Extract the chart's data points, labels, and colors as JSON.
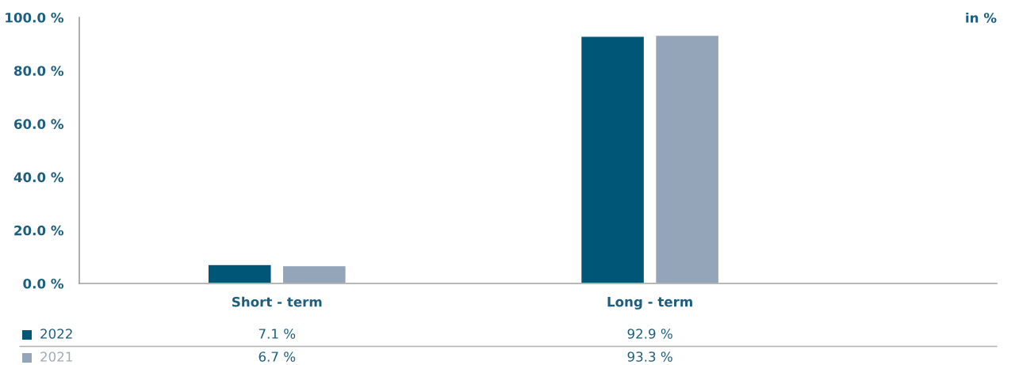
{
  "chart_data": {
    "type": "bar",
    "categories": [
      "Short - term",
      "Long - term"
    ],
    "series": [
      {
        "name": "2022",
        "color": "#005677",
        "values": [
          7.1,
          92.9
        ],
        "value_labels": [
          "7.1 %",
          "92.9 %"
        ]
      },
      {
        "name": "2021",
        "color": "#94a5b9",
        "values": [
          6.7,
          93.3
        ],
        "value_labels": [
          "6.7 %",
          "93.3 %"
        ]
      }
    ],
    "ylim": [
      0,
      100
    ],
    "yticks": [
      {
        "value": 0,
        "label": "0.0 %"
      },
      {
        "value": 20,
        "label": "20.0 %"
      },
      {
        "value": 40,
        "label": "40.0 %"
      },
      {
        "value": 60,
        "label": "60.0 %"
      },
      {
        "value": 80,
        "label": "80.0 %"
      },
      {
        "value": 100,
        "label": "100.0 %"
      }
    ],
    "annotations": [
      "in %"
    ],
    "grid": false,
    "legend": "bottom"
  }
}
